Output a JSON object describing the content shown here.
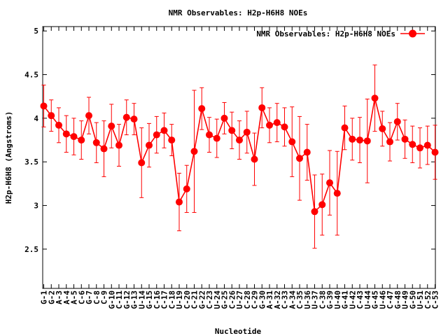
{
  "chart_data": {
    "type": "line",
    "title": "NMR Observables: H2p-H6H8 NOEs",
    "xlabel": "Nucleotide",
    "ylabel": "H2p-H6H8 (Angstroms)",
    "ylim": [
      2.05,
      5.05
    ],
    "yticks": [
      "2.5",
      "3",
      "3.5",
      "4",
      "4.5",
      "5"
    ],
    "ytick_values": [
      2.5,
      3,
      3.5,
      4,
      4.5,
      5
    ],
    "grid": false,
    "legend_position": "top-right",
    "series_color": "#ff0000",
    "categories": [
      "G-1",
      "G-2",
      "A-3",
      "A-4",
      "A-5",
      "C-6",
      "G-7",
      "C-8",
      "C-9",
      "G-10",
      "C-11",
      "G-12",
      "G-13",
      "U-14",
      "G-15",
      "C-16",
      "C-17",
      "C-18",
      "U-19",
      "C-20",
      "C-21",
      "G-22",
      "C-23",
      "U-24",
      "G-25",
      "C-26",
      "U-27",
      "C-28",
      "C-29",
      "G-30",
      "A-31",
      "A-32",
      "C-33",
      "A-34",
      "C-35",
      "U-36",
      "U-37",
      "C-38",
      "G-39",
      "U-40",
      "G-41",
      "U-42",
      "C-43",
      "U-44",
      "G-45",
      "U-46",
      "C-47",
      "G-48",
      "U-49",
      "G-50",
      "U-51",
      "C-52",
      "C-53"
    ],
    "series": [
      {
        "name": "NMR Observables: H2p-H6H8 NOEs",
        "values": [
          4.14,
          4.03,
          3.92,
          3.82,
          3.79,
          3.75,
          4.03,
          3.72,
          3.65,
          3.91,
          3.69,
          4.01,
          3.99,
          3.49,
          3.69,
          3.81,
          3.86,
          3.75,
          3.04,
          3.19,
          3.62,
          4.11,
          3.81,
          3.77,
          4.0,
          3.86,
          3.75,
          3.84,
          3.53,
          4.12,
          3.92,
          3.95,
          3.9,
          3.73,
          3.54,
          3.61,
          2.93,
          3.01,
          3.26,
          3.14,
          3.89,
          3.76,
          3.75,
          3.74,
          4.23,
          3.88,
          3.73,
          3.96,
          3.76,
          3.7,
          3.66,
          3.69,
          3.61
        ],
        "errors": [
          0.24,
          0.18,
          0.2,
          0.21,
          0.21,
          0.22,
          0.21,
          0.23,
          0.32,
          0.25,
          0.24,
          0.2,
          0.18,
          0.4,
          0.25,
          0.21,
          0.2,
          0.18,
          0.33,
          0.27,
          0.7,
          0.24,
          0.2,
          0.22,
          0.18,
          0.21,
          0.22,
          0.24,
          0.3,
          0.23,
          0.2,
          0.22,
          0.22,
          0.4,
          0.48,
          0.32,
          0.42,
          0.35,
          0.37,
          0.48,
          0.25,
          0.24,
          0.26,
          0.48,
          0.38,
          0.2,
          0.22,
          0.21,
          0.22,
          0.21,
          0.23,
          0.22,
          0.31
        ]
      }
    ]
  }
}
